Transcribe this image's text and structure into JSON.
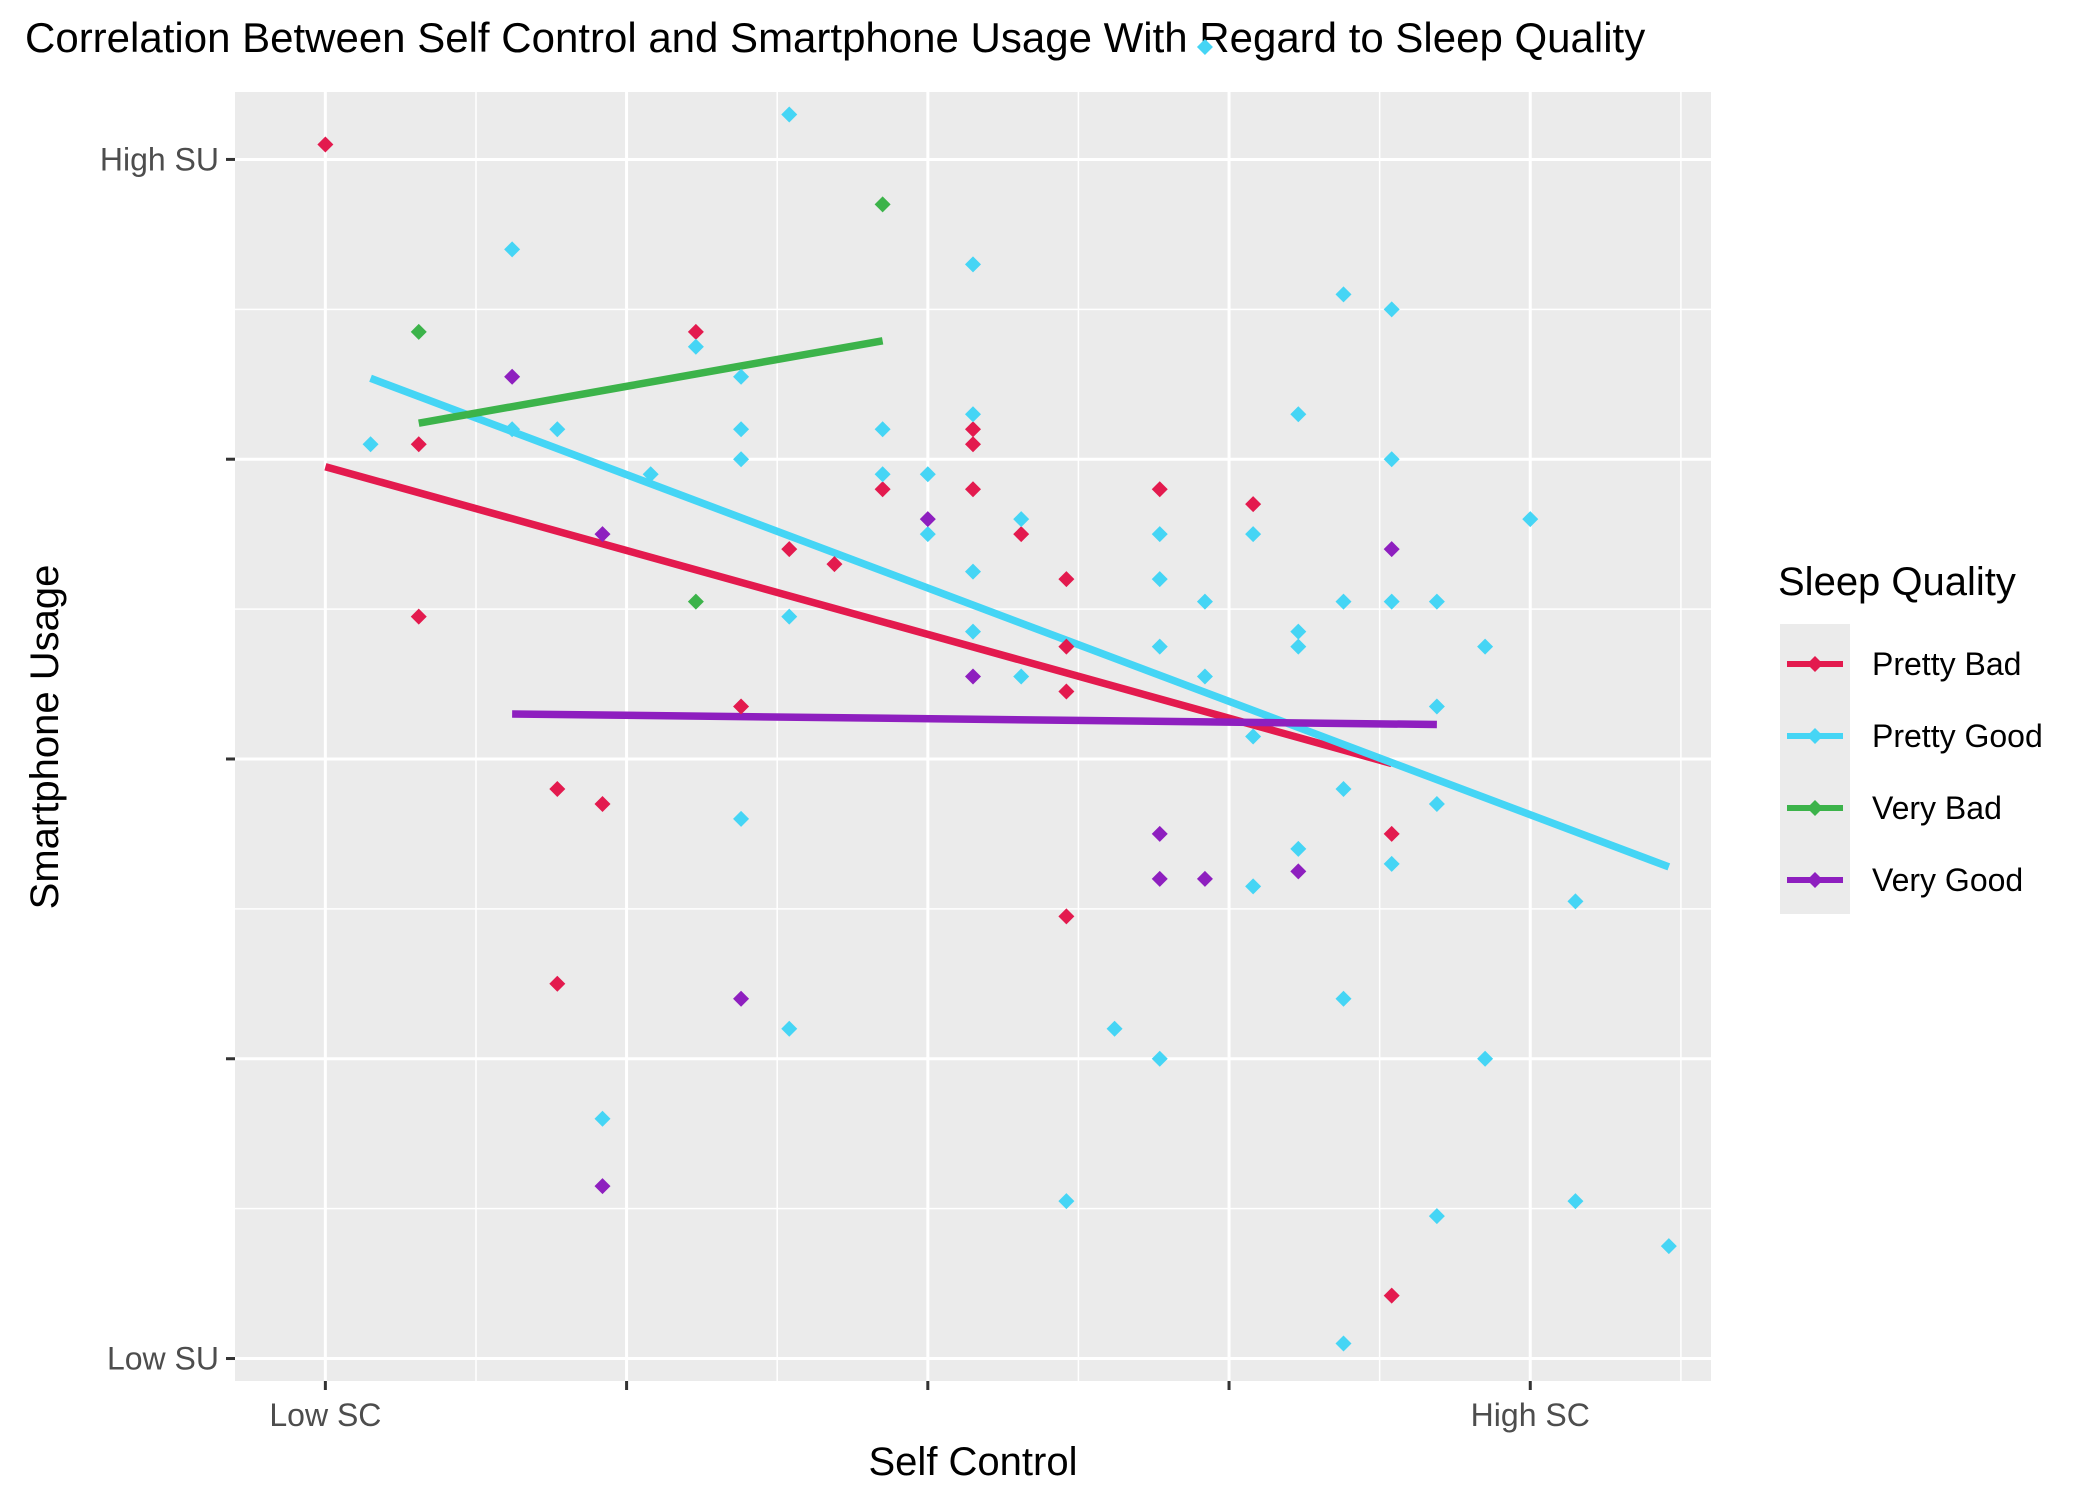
{
  "title": "Correlation Between Self Control and Smartphone Usage With Regard to Sleep Quality",
  "chart_data": {
    "type": "scatter",
    "title": "Correlation Between Self Control and Smartphone Usage With Regard to Sleep Quality",
    "xlabel": "Self Control",
    "ylabel": "Smartphone Usage",
    "xlim": [
      0.7,
      5.6
    ],
    "ylim": [
      -0.15,
      8.45
    ],
    "x_ticks": [
      {
        "value": 1,
        "label": "Low SC"
      },
      {
        "value": 2,
        "label": ""
      },
      {
        "value": 3,
        "label": ""
      },
      {
        "value": 4,
        "label": ""
      },
      {
        "value": 5,
        "label": "High SC"
      }
    ],
    "y_ticks": [
      {
        "value": 0,
        "label": "Low SU"
      },
      {
        "value": 2,
        "label": ""
      },
      {
        "value": 4,
        "label": ""
      },
      {
        "value": 6,
        "label": ""
      },
      {
        "value": 8,
        "label": "High SU"
      }
    ],
    "grid": true,
    "background": "#ebebeb",
    "legend": {
      "title": "Sleep Quality",
      "position": "right"
    },
    "series": [
      {
        "name": "Pretty Bad",
        "color": "#e31a4e",
        "points": [
          [
            1.0,
            8.1
          ],
          [
            1.31,
            6.1
          ],
          [
            1.31,
            4.95
          ],
          [
            1.77,
            3.8
          ],
          [
            1.77,
            2.5
          ],
          [
            1.92,
            3.7
          ],
          [
            2.23,
            6.85
          ],
          [
            2.38,
            4.35
          ],
          [
            2.54,
            5.4
          ],
          [
            2.69,
            5.3
          ],
          [
            2.85,
            5.8
          ],
          [
            3.15,
            6.2
          ],
          [
            3.15,
            6.1
          ],
          [
            3.15,
            5.8
          ],
          [
            3.31,
            5.5
          ],
          [
            3.46,
            5.2
          ],
          [
            3.46,
            4.75
          ],
          [
            3.46,
            4.45
          ],
          [
            3.46,
            2.95
          ],
          [
            3.77,
            5.8
          ],
          [
            4.08,
            5.7
          ],
          [
            4.54,
            3.5
          ],
          [
            4.54,
            0.42
          ]
        ],
        "trend": [
          [
            1.0,
            5.95
          ],
          [
            4.54,
            3.97
          ]
        ]
      },
      {
        "name": "Pretty Good",
        "color": "#45d5f5",
        "points": [
          [
            1.15,
            6.1
          ],
          [
            1.62,
            7.4
          ],
          [
            1.62,
            6.2
          ],
          [
            1.77,
            6.2
          ],
          [
            1.92,
            1.6
          ],
          [
            2.08,
            5.9
          ],
          [
            2.23,
            6.75
          ],
          [
            2.38,
            6.55
          ],
          [
            2.38,
            6.2
          ],
          [
            2.38,
            6.0
          ],
          [
            2.38,
            3.6
          ],
          [
            2.54,
            8.3
          ],
          [
            2.54,
            4.95
          ],
          [
            2.54,
            2.2
          ],
          [
            2.85,
            6.2
          ],
          [
            2.85,
            5.9
          ],
          [
            3.0,
            5.9
          ],
          [
            3.0,
            5.5
          ],
          [
            3.15,
            7.3
          ],
          [
            3.15,
            6.3
          ],
          [
            3.15,
            5.25
          ],
          [
            3.15,
            4.85
          ],
          [
            3.31,
            5.6
          ],
          [
            3.31,
            4.55
          ],
          [
            3.46,
            1.05
          ],
          [
            3.62,
            2.2
          ],
          [
            3.77,
            5.5
          ],
          [
            3.77,
            5.2
          ],
          [
            3.77,
            4.75
          ],
          [
            3.77,
            2.0
          ],
          [
            3.92,
            8.75
          ],
          [
            3.92,
            5.05
          ],
          [
            3.92,
            4.55
          ],
          [
            4.08,
            5.5
          ],
          [
            4.08,
            4.15
          ],
          [
            4.08,
            3.15
          ],
          [
            4.23,
            6.3
          ],
          [
            4.23,
            4.85
          ],
          [
            4.23,
            4.75
          ],
          [
            4.23,
            3.4
          ],
          [
            4.38,
            7.1
          ],
          [
            4.38,
            5.05
          ],
          [
            4.38,
            3.8
          ],
          [
            4.38,
            2.4
          ],
          [
            4.38,
            0.1
          ],
          [
            4.54,
            7.0
          ],
          [
            4.54,
            6.0
          ],
          [
            4.54,
            5.05
          ],
          [
            4.54,
            3.3
          ],
          [
            4.69,
            5.05
          ],
          [
            4.69,
            4.35
          ],
          [
            4.69,
            3.7
          ],
          [
            4.69,
            0.95
          ],
          [
            4.85,
            4.75
          ],
          [
            4.85,
            2.0
          ],
          [
            5.0,
            5.6
          ],
          [
            5.15,
            3.05
          ],
          [
            5.15,
            1.05
          ],
          [
            5.46,
            0.75
          ]
        ],
        "trend": [
          [
            1.15,
            6.54
          ],
          [
            5.46,
            3.28
          ]
        ]
      },
      {
        "name": "Very Bad",
        "color": "#3cb34a",
        "points": [
          [
            1.31,
            6.85
          ],
          [
            2.23,
            5.05
          ],
          [
            2.85,
            7.7
          ]
        ],
        "trend": [
          [
            1.31,
            6.24
          ],
          [
            2.85,
            6.79
          ]
        ]
      },
      {
        "name": "Very Good",
        "color": "#8e1fbf",
        "points": [
          [
            1.62,
            6.55
          ],
          [
            1.92,
            5.5
          ],
          [
            1.92,
            1.15
          ],
          [
            2.38,
            2.4
          ],
          [
            3.0,
            5.6
          ],
          [
            3.15,
            4.55
          ],
          [
            3.77,
            3.5
          ],
          [
            3.77,
            3.2
          ],
          [
            3.92,
            3.2
          ],
          [
            4.23,
            3.25
          ],
          [
            4.54,
            5.4
          ]
        ],
        "trend": [
          [
            1.62,
            4.3
          ],
          [
            4.69,
            4.23
          ]
        ]
      }
    ]
  }
}
